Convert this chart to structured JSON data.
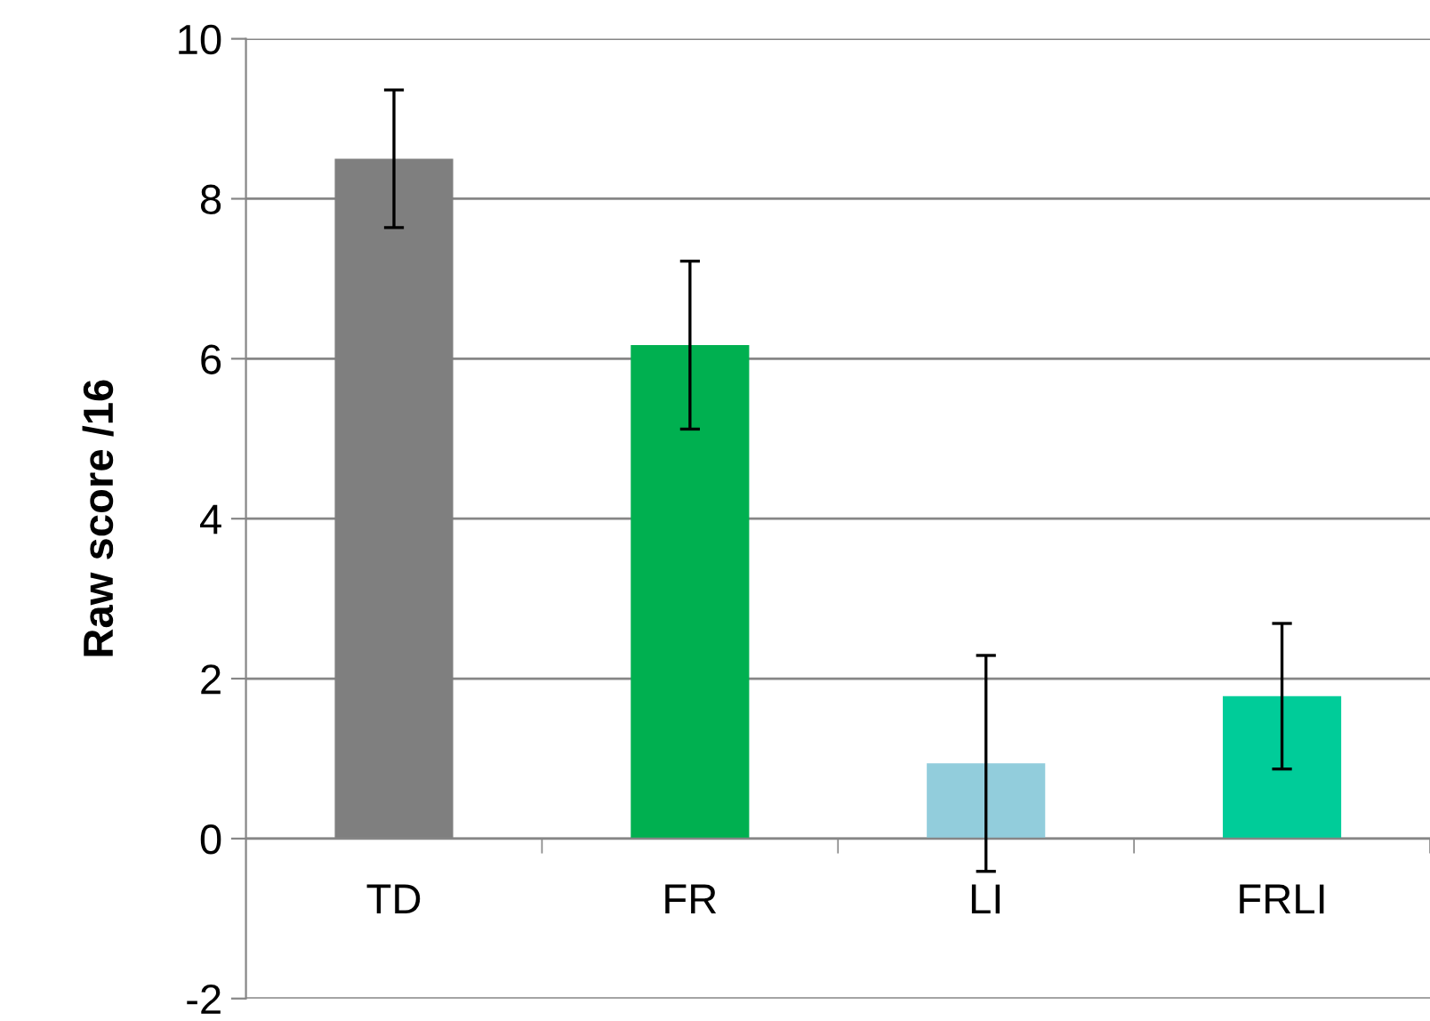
{
  "chart_data": {
    "type": "bar",
    "ylabel": "Raw score /16",
    "categories": [
      "TD",
      "FR",
      "LI",
      "FRLI"
    ],
    "values": [
      8.5,
      6.17,
      0.94,
      1.78
    ],
    "errors": [
      0.86,
      1.05,
      1.35,
      0.91
    ],
    "colors": [
      "#7f7f7f",
      "#00b050",
      "#92cddc",
      "#00cc99"
    ],
    "ylim": [
      -2,
      10
    ],
    "yticks": [
      -2,
      0,
      2,
      4,
      6,
      8,
      10
    ],
    "grid": "y"
  }
}
